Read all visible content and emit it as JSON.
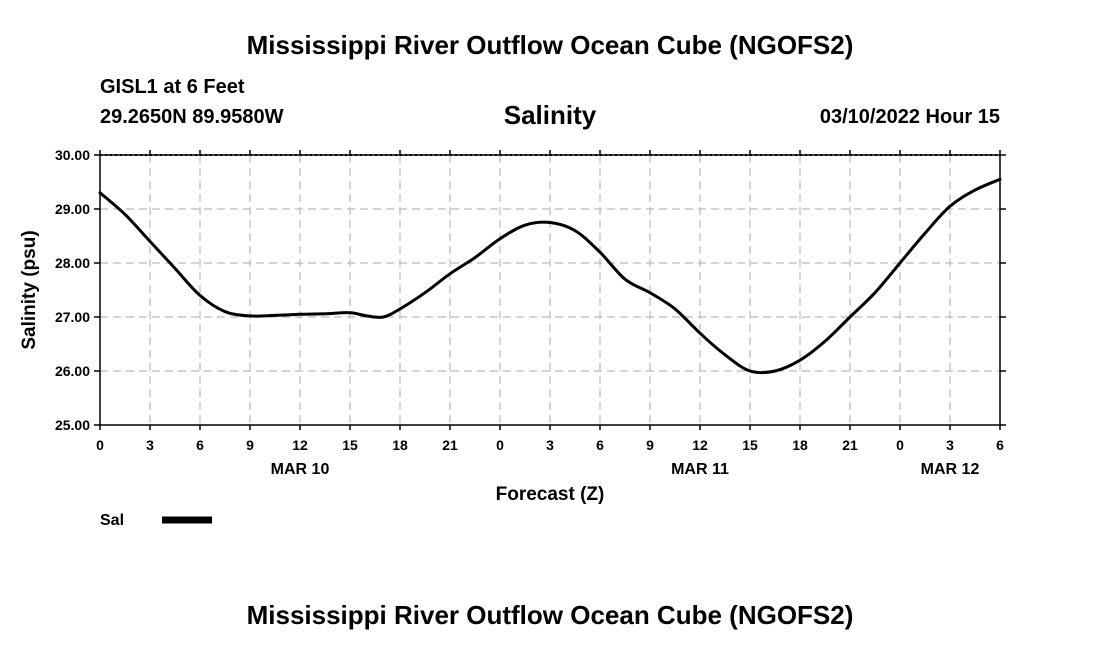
{
  "header": {
    "title": "Mississippi River Outflow Ocean Cube (NGOFS2)",
    "station": "GISL1 at 6 Feet",
    "coords": "29.2650N  89.9580W",
    "chart_title": "Salinity",
    "datetime": "03/10/2022 Hour 15"
  },
  "footer": {
    "title": "Mississippi River Outflow Ocean Cube (NGOFS2)"
  },
  "chart_data": {
    "type": "line",
    "title": "Salinity",
    "xlabel": "Forecast (Z)",
    "ylabel": "Salinity (psu)",
    "ylim": [
      25,
      30
    ],
    "xlim": [
      0,
      54
    ],
    "x_unit": "hours since MAR 10 00Z",
    "grid": true,
    "yticks": [
      "25.00",
      "26.00",
      "27.00",
      "28.00",
      "29.00",
      "30.00"
    ],
    "xticks": [
      {
        "h": 0,
        "label": "0"
      },
      {
        "h": 3,
        "label": "3"
      },
      {
        "h": 6,
        "label": "6"
      },
      {
        "h": 9,
        "label": "9"
      },
      {
        "h": 12,
        "label": "12"
      },
      {
        "h": 15,
        "label": "15"
      },
      {
        "h": 18,
        "label": "18"
      },
      {
        "h": 21,
        "label": "21"
      },
      {
        "h": 24,
        "label": "0"
      },
      {
        "h": 27,
        "label": "3"
      },
      {
        "h": 30,
        "label": "6"
      },
      {
        "h": 33,
        "label": "9"
      },
      {
        "h": 36,
        "label": "12"
      },
      {
        "h": 39,
        "label": "15"
      },
      {
        "h": 42,
        "label": "18"
      },
      {
        "h": 45,
        "label": "21"
      },
      {
        "h": 48,
        "label": "0"
      },
      {
        "h": 51,
        "label": "3"
      },
      {
        "h": 54,
        "label": "6"
      }
    ],
    "day_labels": [
      {
        "h": 12,
        "label": "MAR 10"
      },
      {
        "h": 36,
        "label": "MAR 11"
      },
      {
        "h": 51,
        "label": "MAR 12"
      }
    ],
    "legend": {
      "label": "Sal",
      "position": "bottom-left"
    },
    "series": [
      {
        "name": "Sal",
        "x": [
          0,
          1.5,
          3,
          4.5,
          6,
          7.5,
          9,
          10.5,
          12,
          13.5,
          15,
          16,
          17,
          18,
          19.5,
          21,
          22.5,
          24,
          25.5,
          27,
          28.5,
          30,
          31.5,
          33,
          34.5,
          36,
          37.5,
          39,
          40.5,
          42,
          43.5,
          45,
          46.5,
          48,
          49.5,
          51,
          52.5,
          54
        ],
        "values": [
          29.3,
          28.9,
          28.4,
          27.9,
          27.4,
          27.1,
          27.02,
          27.03,
          27.05,
          27.06,
          27.08,
          27.02,
          27.0,
          27.15,
          27.45,
          27.8,
          28.1,
          28.45,
          28.7,
          28.75,
          28.6,
          28.2,
          27.7,
          27.45,
          27.15,
          26.7,
          26.3,
          26.0,
          26.0,
          26.2,
          26.55,
          27.0,
          27.45,
          28.0,
          28.55,
          29.05,
          29.35,
          29.55
        ]
      }
    ]
  }
}
